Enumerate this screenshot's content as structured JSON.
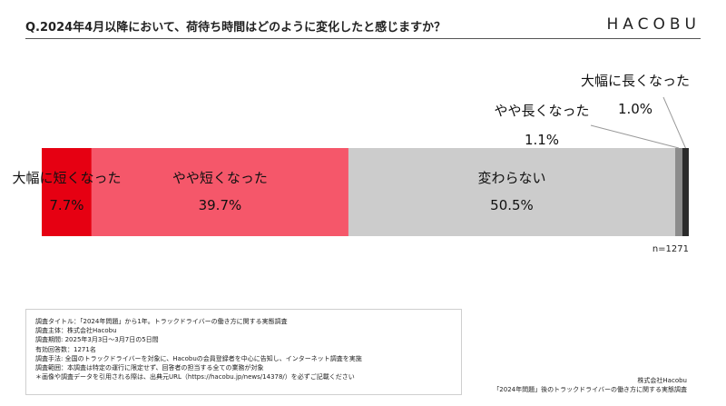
{
  "header": {
    "title": "Q.2024年4月以降において、荷待ち時間はどのように変化したと感じますか？",
    "logo": "HACOBU"
  },
  "chart_data": {
    "type": "bar",
    "orientation": "horizontal-stacked-100",
    "segments": [
      {
        "label": "大幅に短くなった",
        "value": 7.7,
        "value_label": "7.7%",
        "color": "#e60012"
      },
      {
        "label": "やや短くなった",
        "value": 39.7,
        "value_label": "39.7%",
        "color": "#f5576a"
      },
      {
        "label": "変わらない",
        "value": 50.5,
        "value_label": "50.5%",
        "color": "#cccccc"
      },
      {
        "label": "やや長くなった",
        "value": 1.1,
        "value_label": "1.1%",
        "color": "#8c8c8c"
      },
      {
        "label": "大幅に長くなった",
        "value": 1.0,
        "value_label": "1.0%",
        "color": "#2b2b2b"
      }
    ],
    "n_label": "n=1271"
  },
  "survey": {
    "lines": [
      "調査タイトル：「2024年問題」から1年。トラックドライバーの働き方に関する実態調査",
      "調査主体：株式会社Hacobu",
      "調査期間: 2025年3月3日～3月7日の5日間",
      "有効回答数：1271名",
      "調査手法: 全国のトラックドライバーを対象に、Hacobuの会員登録者を中心に告知し、インターネット調査を実施",
      "調査範囲：本調査は特定の運行に限定せず、回答者の担当する全ての業務が対象",
      "＊画像や調査データを引用される際は、出典元URL（https://hacobu.jp/news/14378/）を必ずご記載ください"
    ]
  },
  "footer": {
    "company": "株式会社Hacobu",
    "report": "「2024年問題」後のトラックドライバーの働き方に関する実態調査"
  }
}
